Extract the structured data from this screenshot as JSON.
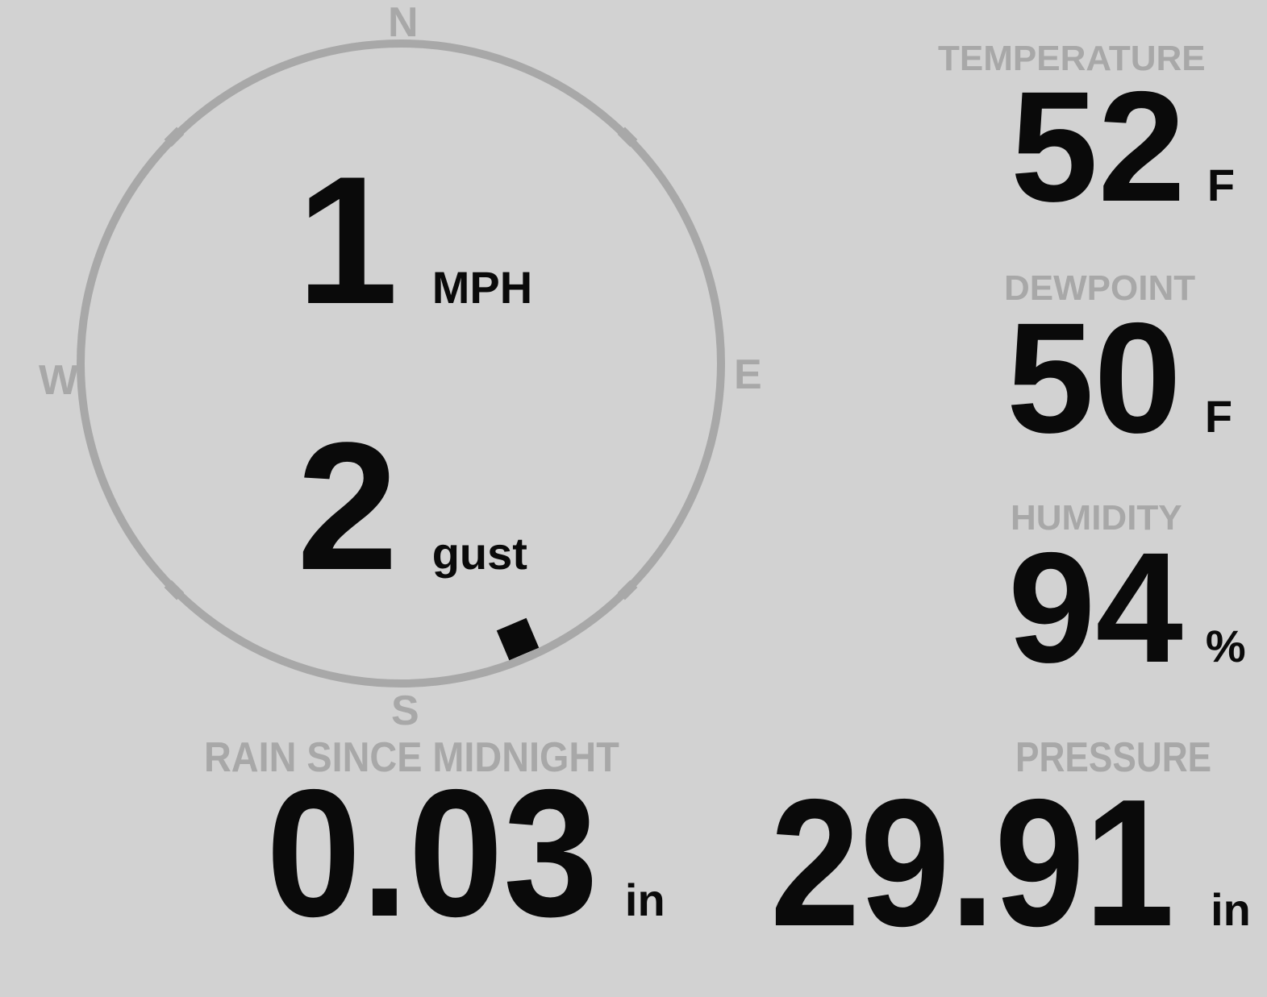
{
  "display": {
    "background_color": "#d2d2d2",
    "muted_color": "#a8a8a8",
    "value_color": "#0a0a0a"
  },
  "compass": {
    "north_label": "N",
    "east_label": "E",
    "south_label": "S",
    "west_label": "W",
    "wind_direction_deg": 157
  },
  "wind": {
    "speed_value": "1",
    "speed_unit": "MPH",
    "gust_value": "2",
    "gust_unit": "gust"
  },
  "metrics": {
    "temperature": {
      "label": "TEMPERATURE",
      "value": "52",
      "unit": "F"
    },
    "dewpoint": {
      "label": "DEWPOINT",
      "value": "50",
      "unit": "F"
    },
    "humidity": {
      "label": "HUMIDITY",
      "value": "94",
      "unit": "%"
    },
    "rain_since_midnight": {
      "label": "RAIN SINCE MIDNIGHT",
      "value": "0.03",
      "unit": "in"
    },
    "pressure": {
      "label": "PRESSURE",
      "value": "29.91",
      "unit": "in"
    }
  }
}
